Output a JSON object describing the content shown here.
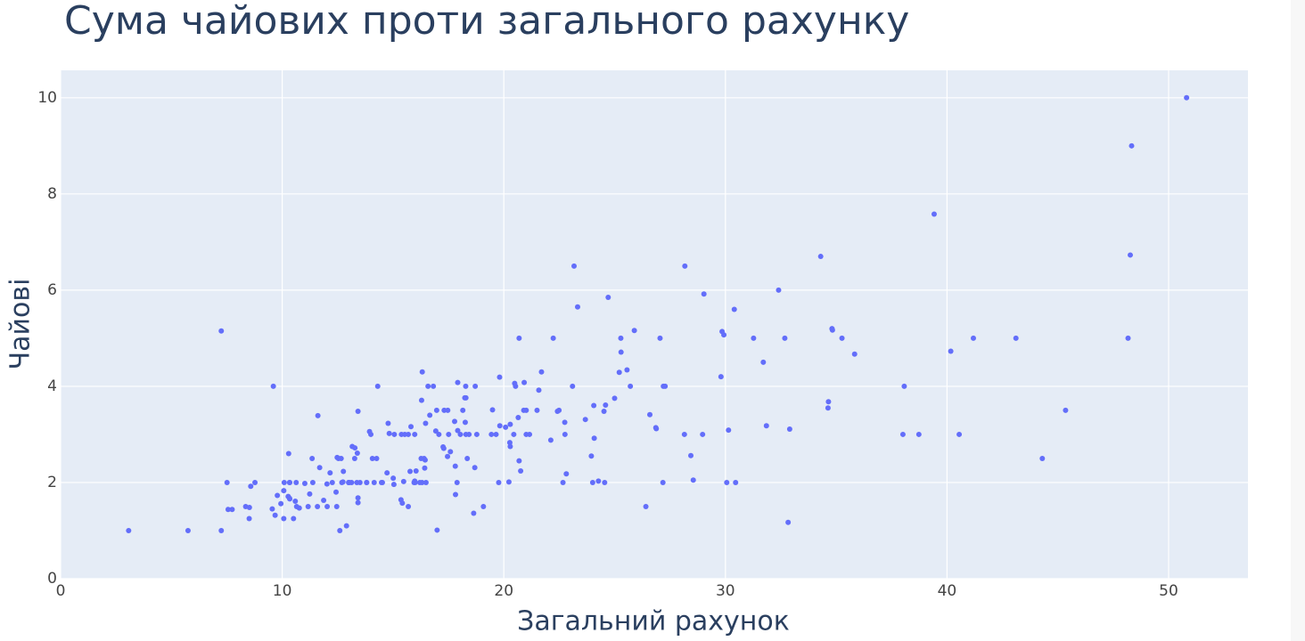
{
  "chart_data": {
    "type": "scatter",
    "title": "Сума чайових проти загального рахунку",
    "x_label": "Загальний рахунок",
    "y_label": "Чайові",
    "color": "#636efa",
    "grid": true,
    "xlim": [
      0,
      53.58
    ],
    "ylim": [
      0,
      10.57
    ],
    "xticks": [
      0,
      10,
      20,
      30,
      40,
      50
    ],
    "yticks": [
      0,
      2,
      4,
      6,
      8,
      10
    ],
    "x": [
      16.99,
      10.34,
      21.01,
      23.68,
      24.59,
      25.29,
      8.77,
      26.88,
      15.04,
      14.78,
      10.27,
      35.26,
      15.42,
      18.43,
      14.83,
      21.58,
      10.33,
      16.29,
      16.97,
      20.65,
      17.92,
      20.29,
      15.77,
      39.42,
      19.82,
      17.81,
      13.37,
      12.69,
      21.7,
      19.65,
      9.55,
      18.35,
      15.06,
      20.69,
      17.78,
      24.06,
      16.31,
      16.93,
      18.69,
      31.27,
      16.04,
      17.46,
      13.94,
      9.68,
      30.4,
      18.29,
      22.23,
      32.4,
      28.55,
      18.04,
      12.54,
      10.29,
      34.81,
      9.94,
      25.56,
      19.49,
      38.01,
      26.41,
      11.24,
      48.27,
      20.29,
      13.81,
      11.02,
      18.29,
      17.59,
      20.08,
      16.45,
      3.07,
      20.23,
      15.01,
      12.02,
      17.07,
      26.86,
      25.28,
      14.73,
      10.51,
      17.92,
      27.2,
      22.76,
      17.29,
      19.44,
      16.66,
      10.07,
      32.68,
      15.98,
      34.83,
      13.03,
      18.28,
      24.71,
      21.16,
      28.97,
      22.49,
      5.75,
      16.32,
      22.75,
      40.17,
      27.28,
      12.03,
      21.01,
      12.46,
      11.35,
      15.38,
      44.3,
      22.42,
      20.92,
      15.36,
      20.49,
      25.21,
      18.24,
      14.31,
      14.0,
      7.25,
      38.07,
      23.95,
      25.71,
      17.31,
      29.93,
      10.65,
      12.43,
      24.08,
      11.69,
      13.42,
      14.26,
      15.95,
      12.48,
      29.8,
      8.52,
      14.52,
      11.38,
      22.82,
      19.08,
      20.27,
      11.17,
      12.26,
      18.26,
      8.51,
      10.33,
      14.15,
      16.0,
      13.16,
      17.47,
      34.3,
      41.19,
      27.05,
      16.43,
      8.35,
      18.64,
      11.87,
      9.78,
      7.51,
      14.07,
      13.13,
      17.26,
      24.55,
      19.77,
      29.85,
      48.17,
      25.0,
      13.39,
      16.49,
      21.5,
      12.66,
      16.21,
      13.81,
      17.51,
      24.52,
      20.76,
      31.71,
      10.59,
      10.63,
      50.81,
      15.81,
      7.25,
      31.85,
      16.82,
      32.9,
      17.89,
      14.48,
      9.6,
      34.63,
      34.65,
      23.33,
      45.35,
      23.17,
      40.55,
      20.69,
      20.9,
      30.46,
      18.15,
      23.1,
      15.69,
      19.81,
      28.44,
      15.48,
      16.58,
      7.56,
      10.34,
      43.11,
      13.0,
      13.51,
      18.71,
      12.74,
      13.0,
      16.4,
      20.53,
      16.47,
      26.59,
      38.73,
      24.27,
      12.76,
      30.06,
      25.89,
      48.33,
      13.27,
      28.17,
      12.9,
      28.15,
      11.59,
      7.74,
      30.14,
      12.16,
      13.42,
      8.58,
      15.98,
      13.42,
      16.27,
      10.09,
      20.45,
      13.28,
      22.12,
      24.01,
      15.69,
      11.61,
      10.77,
      15.53,
      10.07,
      12.6,
      32.83,
      35.83,
      29.03,
      27.18,
      22.67,
      17.82,
      18.78
    ],
    "values": [
      1.01,
      1.66,
      3.5,
      3.31,
      3.61,
      4.71,
      2.0,
      3.12,
      1.96,
      3.23,
      1.71,
      5.0,
      1.57,
      3.0,
      3.02,
      3.92,
      1.67,
      3.71,
      3.5,
      3.35,
      4.08,
      2.75,
      2.23,
      7.58,
      3.18,
      2.34,
      2.0,
      2.0,
      4.3,
      3.0,
      1.45,
      2.5,
      3.0,
      2.45,
      3.27,
      3.6,
      2.0,
      3.07,
      2.31,
      5.0,
      2.24,
      2.54,
      3.06,
      1.32,
      5.6,
      3.0,
      5.0,
      6.0,
      2.05,
      3.0,
      2.5,
      2.6,
      5.2,
      1.56,
      4.34,
      3.51,
      3.0,
      1.5,
      1.76,
      6.73,
      3.21,
      2.0,
      1.98,
      3.76,
      2.64,
      3.15,
      2.47,
      1.0,
      2.01,
      2.09,
      1.97,
      3.0,
      3.14,
      5.0,
      2.2,
      1.25,
      3.08,
      4.0,
      3.0,
      2.71,
      3.0,
      3.4,
      1.83,
      5.0,
      2.03,
      5.17,
      2.0,
      4.0,
      5.85,
      3.0,
      3.0,
      3.5,
      1.0,
      4.3,
      3.25,
      4.73,
      4.0,
      1.5,
      3.0,
      1.5,
      2.5,
      3.0,
      2.5,
      3.48,
      4.08,
      1.64,
      4.06,
      4.29,
      3.76,
      4.0,
      3.0,
      1.0,
      4.0,
      2.55,
      4.0,
      3.5,
      5.07,
      1.5,
      1.8,
      2.92,
      2.31,
      1.68,
      2.5,
      2.0,
      2.52,
      4.2,
      1.48,
      2.0,
      2.0,
      2.18,
      1.5,
      2.83,
      1.5,
      2.0,
      3.25,
      1.25,
      2.0,
      2.0,
      2.0,
      2.75,
      3.5,
      6.7,
      5.0,
      5.0,
      2.3,
      1.5,
      1.36,
      1.63,
      1.73,
      2.0,
      2.5,
      2.0,
      2.74,
      2.0,
      2.0,
      5.14,
      5.0,
      3.75,
      2.61,
      2.0,
      3.5,
      2.5,
      2.0,
      2.0,
      3.0,
      3.48,
      2.24,
      4.5,
      1.61,
      2.0,
      10.0,
      3.16,
      5.15,
      3.18,
      4.0,
      3.11,
      2.0,
      2.0,
      4.0,
      3.55,
      3.68,
      5.65,
      3.5,
      6.5,
      3.0,
      5.0,
      3.5,
      2.0,
      3.5,
      4.0,
      1.5,
      4.19,
      2.56,
      2.02,
      4.0,
      1.44,
      2.0,
      5.0,
      2.0,
      2.0,
      4.0,
      2.01,
      2.0,
      2.5,
      4.0,
      3.23,
      3.41,
      3.0,
      2.03,
      2.23,
      2.0,
      5.16,
      9.0,
      2.5,
      6.5,
      1.1,
      3.0,
      1.5,
      1.44,
      3.09,
      2.2,
      3.48,
      1.92,
      3.0,
      1.58,
      2.5,
      2.0,
      3.0,
      2.72,
      2.88,
      2.0,
      3.0,
      3.39,
      1.47,
      3.0,
      1.25,
      1.0,
      1.17,
      4.67,
      5.92,
      2.0,
      2.0,
      1.75,
      3.0
    ]
  }
}
